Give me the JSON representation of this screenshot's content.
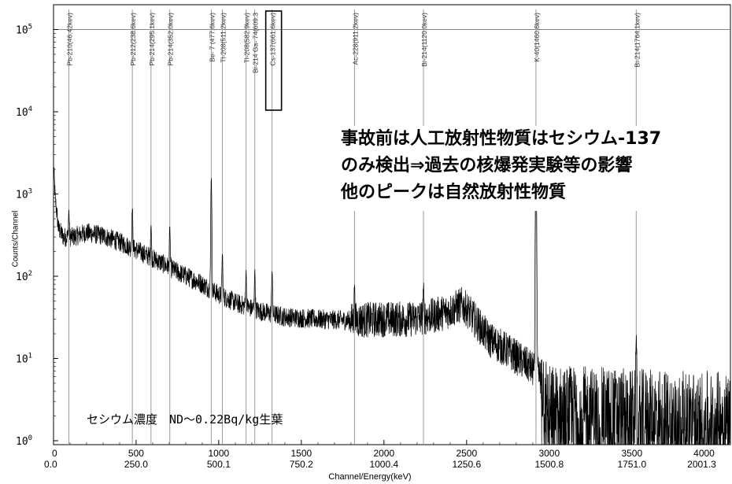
{
  "chart_data": {
    "type": "line",
    "xlabel": "Channel/Energy(keV)",
    "ylabel": "Counts/Channel",
    "y_scale": "log",
    "ylim": [
      0.7,
      600000
    ],
    "channel_range": [
      0,
      4096
    ],
    "x_ticks_channel": [
      "0",
      "500",
      "1000",
      "1500",
      "2000",
      "2500",
      "3000",
      "3500",
      "4000"
    ],
    "x_ticks_energy": [
      "0.0",
      "250.0",
      "500.1",
      "750.2",
      "1000.4",
      "1250.6",
      "1500.8",
      "1751.0",
      "2001.3"
    ],
    "y_ticks": [
      {
        "value": 1,
        "base": "10",
        "exp": "0"
      },
      {
        "value": 10,
        "base": "10",
        "exp": "1"
      },
      {
        "value": 100,
        "base": "10",
        "exp": "2"
      },
      {
        "value": 1000,
        "base": "10",
        "exp": "3"
      },
      {
        "value": 10000,
        "base": "10",
        "exp": "4"
      },
      {
        "value": 100000,
        "base": "10",
        "exp": "5"
      }
    ],
    "spectrum_envelope": [
      {
        "energy": 0.0,
        "counts": 2200
      },
      {
        "energy": 5.0,
        "counts": 900
      },
      {
        "energy": 15.0,
        "counts": 380
      },
      {
        "energy": 30.0,
        "counts": 300
      },
      {
        "energy": 60.0,
        "counts": 300
      },
      {
        "energy": 100.0,
        "counts": 340
      },
      {
        "energy": 150.0,
        "counts": 310
      },
      {
        "energy": 200.0,
        "counts": 260
      },
      {
        "energy": 260.0,
        "counts": 200
      },
      {
        "energy": 320.0,
        "counts": 150
      },
      {
        "energy": 380.0,
        "counts": 110
      },
      {
        "energy": 440.0,
        "counts": 85
      },
      {
        "energy": 500.0,
        "counts": 60
      },
      {
        "energy": 560.0,
        "counts": 46
      },
      {
        "energy": 620.0,
        "counts": 38
      },
      {
        "energy": 700.0,
        "counts": 32
      },
      {
        "energy": 800.0,
        "counts": 30
      },
      {
        "energy": 900.0,
        "counts": 29
      },
      {
        "energy": 1000.0,
        "counts": 30
      },
      {
        "energy": 1080.0,
        "counts": 30
      },
      {
        "energy": 1150.0,
        "counts": 33
      },
      {
        "energy": 1200.0,
        "counts": 38
      },
      {
        "energy": 1235.0,
        "counts": 45
      },
      {
        "energy": 1250.0,
        "counts": 40
      },
      {
        "energy": 1280.0,
        "counts": 28
      },
      {
        "energy": 1320.0,
        "counts": 17
      },
      {
        "energy": 1380.0,
        "counts": 12
      },
      {
        "energy": 1440.0,
        "counts": 8
      },
      {
        "energy": 1475.0,
        "counts": 6
      },
      {
        "energy": 1500.0,
        "counts": 2.4
      },
      {
        "energy": 1800.0,
        "counts": 2.1
      },
      {
        "energy": 2010.0,
        "counts": 2.0
      }
    ],
    "peaks": [
      {
        "label": "Pb-210(46.42kev)",
        "energy": 46.42,
        "height": 330
      },
      {
        "label": "Pb-212(238.6kev)",
        "energy": 238.6,
        "height": 450
      },
      {
        "label": "Pb-214(295.1kev)",
        "energy": 295.1,
        "height": 260
      },
      {
        "label": "Pb-214(352.0kev)",
        "energy": 352.0,
        "height": 250
      },
      {
        "label": "Be- 7 (477.6kev)",
        "energy": 477.6,
        "height": 1500
      },
      {
        "label": "Tl-208(511.2kev)",
        "energy": 511.2,
        "height": 130
      },
      {
        "label": "Tl-208(582.9kev)",
        "energy": 582.9,
        "height": 70
      },
      {
        "label": "Bi-214 Ga- 74(609.3",
        "energy": 609.3,
        "height": 75
      },
      {
        "label": "Cs-137(661.6kev)",
        "energy": 661.6,
        "height": 85
      },
      {
        "label": "Ac-228(911.2kev)",
        "energy": 911.2,
        "height": 45
      },
      {
        "label": "Bi-214(1120.0kev)",
        "energy": 1120.0,
        "height": 40
      },
      {
        "label": "K-40(1460.6kev)",
        "energy": 1460.6,
        "height": 2500
      },
      {
        "label": "Bi-214(1764.1kev)",
        "energy": 1764.1,
        "height": 16
      }
    ],
    "highlighted_peak": "Cs-137(661.6kev)"
  },
  "annotation": {
    "lines": [
      "事故前は人工放射性物質はセシウム-137",
      "のみ検出⇒過去の核爆発実験等の影響",
      "他のピークは自然放射性物質"
    ]
  },
  "cesium_note": "セシウム濃度　ND～0.22Bq/kg生葉"
}
